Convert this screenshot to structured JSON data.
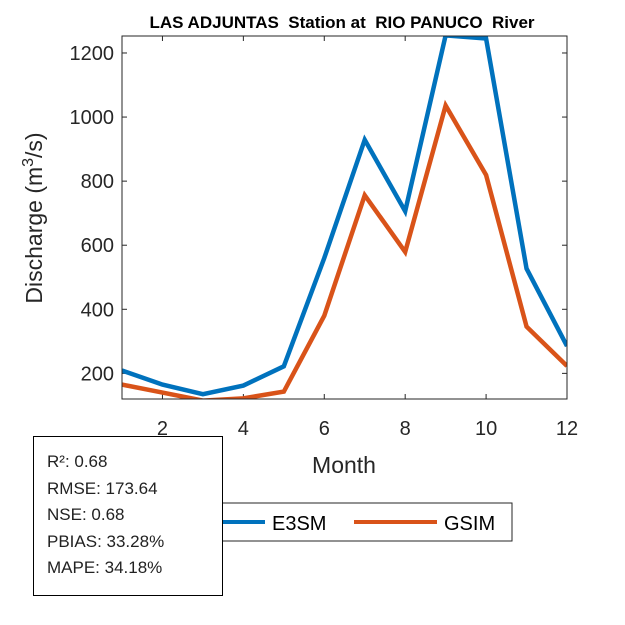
{
  "chart_data": {
    "type": "line",
    "title": "LAS ADJUNTAS  Station at  RIO PANUCO  River",
    "xlabel": "Month",
    "ylabel": "Discharge (m³/s)",
    "ylabel_main": "Discharge (m",
    "ylabel_sup": "3",
    "ylabel_end": "/s)",
    "xlim": [
      1,
      12
    ],
    "ylim": [
      120,
      1253
    ],
    "xticks": [
      2,
      4,
      6,
      8,
      10,
      12
    ],
    "yticks": [
      200,
      400,
      600,
      800,
      1000,
      1200
    ],
    "x": [
      1,
      2,
      3,
      4,
      5,
      6,
      7,
      8,
      9,
      10,
      11,
      12
    ],
    "series": [
      {
        "name": "E3SM",
        "color": "#0072BD",
        "values": [
          209,
          165,
          135,
          162,
          222,
          560,
          929,
          706,
          1255,
          1245,
          527,
          285
        ]
      },
      {
        "name": "GSIM",
        "color": "#D95319",
        "values": [
          165,
          140,
          115,
          122,
          143,
          380,
          756,
          579,
          1036,
          819,
          346,
          223
        ]
      }
    ],
    "legend": "bottom"
  },
  "stats": {
    "r2": "R²: 0.68",
    "rmse": "RMSE: 173.64",
    "nse": "NSE: 0.68",
    "pbias": "PBIAS: 33.28%",
    "mape": "MAPE: 34.18%"
  }
}
